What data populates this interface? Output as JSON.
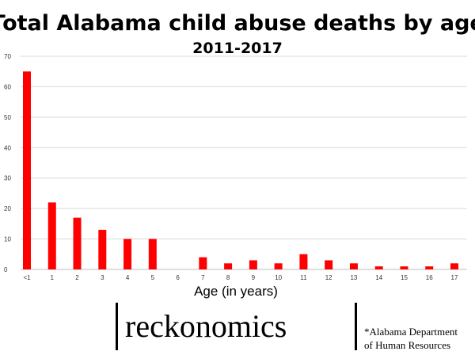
{
  "chart_data": {
    "type": "bar",
    "title": "Total Alabama child abuse deaths by age",
    "subtitle": "2011-2017",
    "xlabel": "Age (in years)",
    "ylabel": "",
    "ylim": [
      0,
      70
    ],
    "yticks": [
      0,
      10,
      20,
      30,
      40,
      50,
      60,
      70
    ],
    "grid": true,
    "categories": [
      "<1",
      "1",
      "2",
      "3",
      "4",
      "5",
      "6",
      "7",
      "8",
      "9",
      "10",
      "11",
      "12",
      "13",
      "14",
      "15",
      "16",
      "17"
    ],
    "values": [
      65,
      22,
      17,
      13,
      10,
      10,
      0,
      4,
      2,
      3,
      2,
      5,
      3,
      2,
      1,
      1,
      1,
      2
    ],
    "bar_color": "#ff0000"
  },
  "branding": {
    "logo_text": "reckonomics",
    "source_line1": "*Alabama Department",
    "source_line2": "of Human Resources"
  }
}
